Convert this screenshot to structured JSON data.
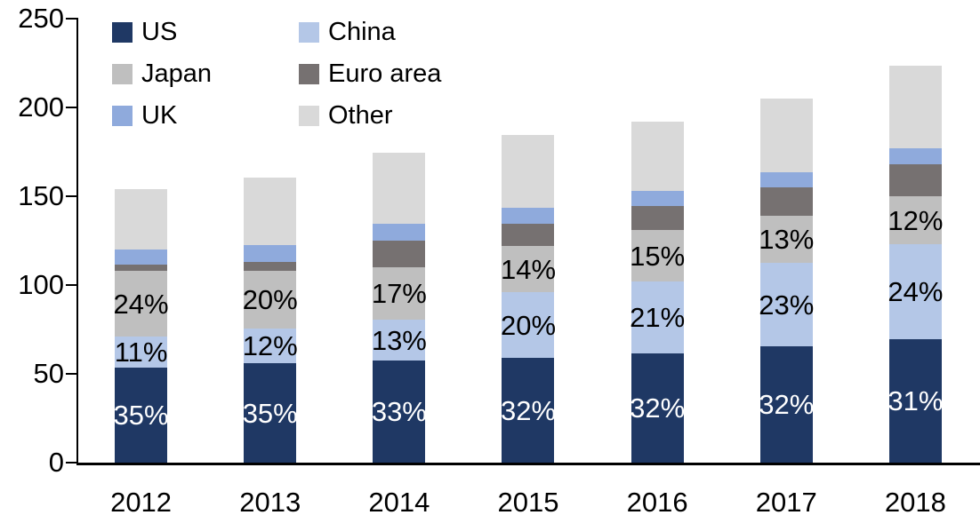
{
  "chart_data": {
    "type": "bar",
    "variant": "stacked",
    "title": "",
    "xlabel": "",
    "ylabel": "",
    "categories": [
      "2012",
      "2013",
      "2014",
      "2015",
      "2016",
      "2017",
      "2018"
    ],
    "series": [
      {
        "name": "US",
        "color": "#1F3864",
        "values": [
          53.5,
          56,
          57.5,
          59,
          61.5,
          65.5,
          69.5
        ],
        "labels": [
          "35%",
          "35%",
          "33%",
          "32%",
          "32%",
          "32%",
          "31%"
        ],
        "label_color": "#FFFFFF"
      },
      {
        "name": "China",
        "color": "#B4C7E7",
        "values": [
          17.5,
          19.5,
          23,
          37,
          40.5,
          47,
          53.5
        ],
        "labels": [
          "11%",
          "12%",
          "13%",
          "20%",
          "21%",
          "23%",
          "24%"
        ],
        "label_color": "#000000"
      },
      {
        "name": "Japan",
        "color": "#BFBFBF",
        "values": [
          37,
          32.5,
          29.5,
          26,
          29,
          26.5,
          27
        ],
        "labels": [
          "24%",
          "20%",
          "17%",
          "14%",
          "15%",
          "13%",
          "12%"
        ],
        "label_color": "#000000"
      },
      {
        "name": "Euro area",
        "color": "#767171",
        "values": [
          3.5,
          5,
          15,
          12.5,
          13.5,
          16,
          18
        ],
        "labels": null,
        "label_color": null
      },
      {
        "name": "UK",
        "color": "#8FAADC",
        "values": [
          8.5,
          9.5,
          9.5,
          9,
          8.5,
          8.5,
          9
        ],
        "labels": null,
        "label_color": null
      },
      {
        "name": "Other",
        "color": "#D9D9D9",
        "values": [
          34,
          38,
          40,
          41,
          39,
          41.5,
          46.5
        ],
        "labels": null,
        "label_color": null
      }
    ],
    "stack_totals": [
      154,
      160.5,
      174.5,
      184.5,
      192,
      205,
      223.5
    ],
    "ylim": [
      0,
      250
    ],
    "yticks": [
      0,
      50,
      100,
      150,
      200,
      250
    ],
    "grid": false,
    "legend_position": "top-left",
    "legend_columns": [
      [
        "US",
        "Japan",
        "UK"
      ],
      [
        "China",
        "Euro area",
        "Other"
      ]
    ],
    "axis_color": "#000000",
    "background_color": "#FFFFFF"
  }
}
